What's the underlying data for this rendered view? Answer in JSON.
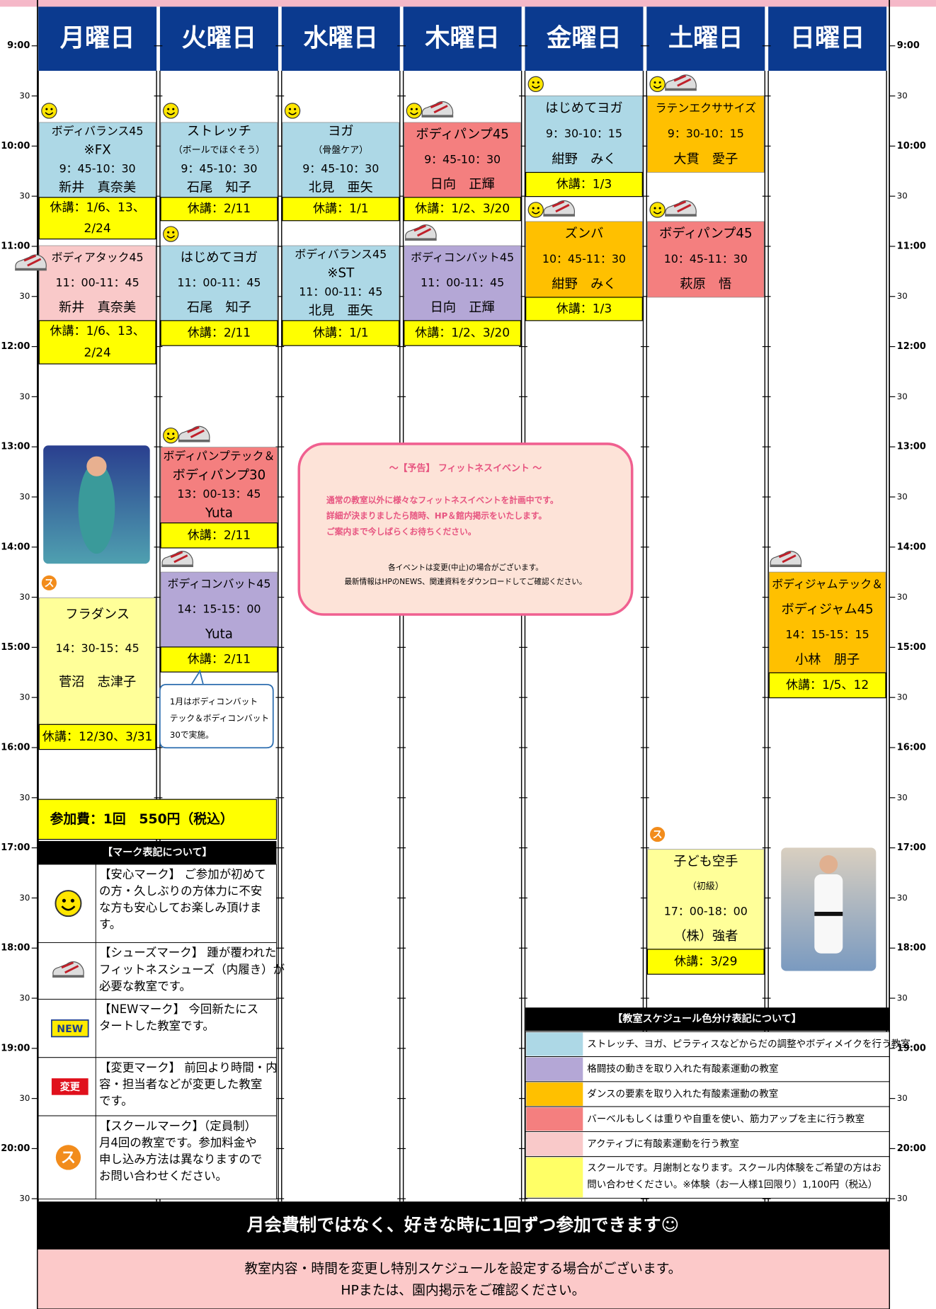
{
  "days": [
    "月曜日",
    "火曜日",
    "水曜日",
    "木曜日",
    "金曜日",
    "土曜日",
    "日曜日"
  ],
  "times": [
    "9:00",
    "30",
    "10:00",
    "30",
    "11:00",
    "30",
    "12:00",
    "30",
    "13:00",
    "30",
    "14:00",
    "30",
    "15:00",
    "30",
    "16:00",
    "30",
    "17:00",
    "30",
    "18:00",
    "30",
    "19:00",
    "30",
    "20:00",
    "30"
  ],
  "classes": [
    {
      "lines": [
        "ボディバランス45",
        "※FX",
        "9：45-10：30",
        "新井　真奈美"
      ],
      "color": "#add8e6",
      "closure": [
        "休講：1/6、13、",
        "2/24"
      ]
    },
    {
      "lines": [
        "ストレッチ",
        "（ボールでほぐそう）",
        "9：45-10：30",
        "石尾　知子"
      ],
      "color": "#add8e6",
      "closure": [
        "休講：2/11"
      ]
    },
    {
      "lines": [
        "ヨガ",
        "（骨盤ケア）",
        "9：45-10：30",
        "北見　亜矢"
      ],
      "color": "#add8e6",
      "closure": [
        "休講：1/1"
      ]
    },
    {
      "lines": [
        "ボディパンプ45",
        "9：45-10：30",
        "日向　正輝"
      ],
      "color": "#f47f7f",
      "closure": [
        "休講：1/2、3/20"
      ]
    },
    {
      "lines": [
        "はじめてヨガ",
        "9：30-10：15",
        "紺野　みく"
      ],
      "color": "#add8e6",
      "closure": [
        "休講：1/3"
      ]
    },
    {
      "lines": [
        "ラテンエクササイズ",
        "9：30-10：15",
        "大貫　愛子"
      ],
      "color": "#ffc000",
      "closure": []
    },
    {
      "lines": [
        "ボディアタック45",
        "11：00-11：45",
        "新井　真奈美"
      ],
      "color": "#f9c9c9",
      "closure": [
        "休講：1/6、13、",
        "2/24"
      ]
    },
    {
      "lines": [
        "はじめてヨガ",
        "11：00-11：45",
        "石尾　知子"
      ],
      "color": "#add8e6",
      "closure": [
        "休講：2/11"
      ]
    },
    {
      "lines": [
        "ボディバランス45",
        "※ST",
        "11：00-11：45",
        "北見　亜矢"
      ],
      "color": "#add8e6",
      "closure": [
        "休講：1/1"
      ]
    },
    {
      "lines": [
        "ボディコンバット45",
        "11：00-11：45",
        "日向　正輝"
      ],
      "color": "#b4a7d6",
      "closure": [
        "休講：1/2、3/20"
      ]
    },
    {
      "lines": [
        "ズンバ",
        "10：45-11：30",
        "紺野　みく"
      ],
      "color": "#ffc000",
      "closure": [
        "休講：1/3"
      ]
    },
    {
      "lines": [
        "ボディパンプ45",
        "10：45-11：30",
        "萩原　悟"
      ],
      "color": "#f47f7f",
      "closure": []
    },
    {
      "lines": [
        "ボディパンプテック＆",
        "ボディパンプ30",
        "13：00-13：45",
        "Yuta"
      ],
      "color": "#f47f7f",
      "closure": [
        "休講：2/11"
      ]
    },
    {
      "lines": [
        "ボディコンバット45",
        "14：15-15：00",
        "Yuta"
      ],
      "color": "#b4a7d6",
      "closure": [
        "休講：2/11"
      ]
    },
    {
      "lines": [
        "フラダンス",
        "14：30-15：45",
        "菅沼　志津子"
      ],
      "color": "#ffff99",
      "closure": [
        "休講：12/30、3/31"
      ]
    },
    {
      "lines": [
        "ボディジャムテック＆",
        "ボディジャム45",
        "14：15-15：15",
        "小林　朋子"
      ],
      "color": "#ffc000",
      "closure": [
        "休講：1/5、12"
      ]
    },
    {
      "lines": [
        "子ども空手",
        "（初級）",
        "17：00-18：00",
        "（株）強者"
      ],
      "color": "#ffff99",
      "closure": [
        "休講：3/29"
      ]
    }
  ],
  "callout": [
    "1月はボディコンバット",
    "テック＆ボディコンバット",
    "30で実施。"
  ],
  "event": {
    "title": "～【予告】 フィットネスイベント ～",
    "highlight": [
      "通常の教室以外に様々なフィットネスイベントを計画中です。",
      "詳細が決まりましたら随時、HP＆館内掲示をいたします。",
      "ご案内まで今しばらくお待ちください。"
    ],
    "notes": [
      "各イベントは変更(中止)の場合がございます。",
      "最新情報はHPのNEWS、関連資料をダウンロードしてご確認ください。"
    ]
  },
  "fee": "参加費：1回　550円（税込）",
  "marks": {
    "school": "ス",
    "new": "NEW",
    "changed": "変更"
  },
  "mark_legend": {
    "title": "【マーク表記について】",
    "rows": [
      [
        "【安心マーク】 ご参加が初めて",
        "の方・久しぶりの方体力に不安",
        "な方も安心してお楽しみ頂けま",
        "す。"
      ],
      [
        "【シューズマーク】 踵が覆われた",
        "フィットネスシューズ（内履き）が",
        "必要な教室です。"
      ],
      [
        "【NEWマーク】 今回新たにス",
        "タートした教室です。"
      ],
      [
        "【変更マーク】 前回より時間・内",
        "容・担当者などが変更した教室",
        "です。"
      ],
      [
        "【スクールマーク】（定員制）",
        "月4回の教室です。参加料金や",
        "申し込み方法は異なりますので",
        "お問い合わせください。"
      ]
    ]
  },
  "color_legend": {
    "title": "【教室スケジュール色分け表記について】",
    "rows": [
      {
        "color": "#add8e6",
        "text": [
          "ストレッチ、ヨガ、ピラティスなどからだの調整やボディメイクを行う教室"
        ]
      },
      {
        "color": "#b4a7d6",
        "text": [
          "格闘技の動きを取り入れた有酸素運動の教室"
        ]
      },
      {
        "color": "#ffc000",
        "text": [
          "ダンスの要素を取り入れた有酸素運動の教室"
        ]
      },
      {
        "color": "#f47f7f",
        "text": [
          "バーベルもしくは重りや自重を使い、筋力アップを主に行う教室"
        ]
      },
      {
        "color": "#f9c9c9",
        "text": [
          "アクティブに有酸素運動を行う教室"
        ]
      },
      {
        "color": "#ffff66",
        "text": [
          "スクールです。月謝制となります。スクール内体験をご希望の方はお",
          "問い合わせください。※体験（お一人様1回限り）1,100円（税込）"
        ]
      }
    ]
  },
  "footer": {
    "banner": "月会費制ではなく、好きな時に1回ずつ参加できます☺",
    "notice": [
      "教室内容・時間を変更し特別スケジュールを設定する場合がございます。",
      "HPまたは、園内掲示をご確認ください。"
    ]
  }
}
